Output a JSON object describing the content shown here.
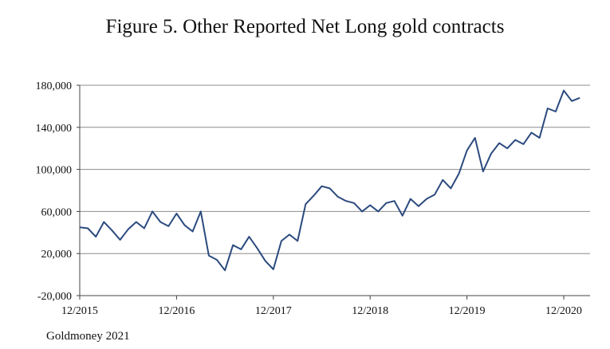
{
  "figure": {
    "source": "Goldmoney 2021"
  },
  "chart_data": {
    "type": "line",
    "title": "Figure 5. Other Reported Net Long gold contracts",
    "xlabel": "",
    "ylabel": "",
    "ylim": [
      -20000,
      180000
    ],
    "yticks": [
      -20000,
      20000,
      60000,
      100000,
      140000,
      180000
    ],
    "ytick_labels": [
      "-20,000",
      "20,000",
      "60,000",
      "100,000",
      "140,000",
      "180,000"
    ],
    "xlim": [
      "2015-12",
      "2020-12"
    ],
    "xticks": [
      "2015-12",
      "2016-12",
      "2017-12",
      "2018-12",
      "2019-12",
      "2020-12"
    ],
    "xtick_labels": [
      "12/2015",
      "12/2016",
      "12/2017",
      "12/2018",
      "12/2019",
      "12/2020"
    ],
    "grid": "horizontal",
    "line_color": "#2b4a7e",
    "series": [
      {
        "x": [
          "2015-12",
          "2016-01",
          "2016-02",
          "2016-03",
          "2016-04",
          "2016-05",
          "2016-06",
          "2016-07",
          "2016-08",
          "2016-09",
          "2016-10",
          "2016-11",
          "2016-12",
          "2017-01",
          "2017-02",
          "2017-03",
          "2017-04",
          "2017-05",
          "2017-06",
          "2017-07",
          "2017-08",
          "2017-09",
          "2017-10",
          "2017-11",
          "2017-12",
          "2018-01",
          "2018-02",
          "2018-03",
          "2018-04",
          "2018-05",
          "2018-06",
          "2018-07",
          "2018-08",
          "2018-09",
          "2018-10",
          "2018-11",
          "2018-12",
          "2019-01",
          "2019-02",
          "2019-03",
          "2019-04",
          "2019-05",
          "2019-06",
          "2019-07",
          "2019-08",
          "2019-09",
          "2019-10",
          "2019-11",
          "2019-12",
          "2020-01",
          "2020-02",
          "2020-03",
          "2020-04",
          "2020-05",
          "2020-06",
          "2020-07",
          "2020-08",
          "2020-09",
          "2020-10",
          "2020-11",
          "2020-12",
          "2021-01",
          "2021-02"
        ],
        "values": [
          45000,
          44000,
          36000,
          50000,
          42000,
          33000,
          43000,
          50000,
          44000,
          60000,
          50000,
          46000,
          58000,
          47000,
          41000,
          60000,
          18000,
          14000,
          4000,
          28000,
          24000,
          36000,
          25000,
          13000,
          5000,
          32000,
          38000,
          32000,
          67000,
          75000,
          84000,
          82000,
          74000,
          70000,
          68000,
          60000,
          66000,
          60000,
          68000,
          70000,
          56000,
          72000,
          65000,
          72000,
          76000,
          90000,
          82000,
          96000,
          118000,
          130000,
          98000,
          115000,
          125000,
          120000,
          128000,
          124000,
          135000,
          130000,
          158000,
          155000,
          175000,
          165000,
          168000
        ]
      }
    ]
  }
}
